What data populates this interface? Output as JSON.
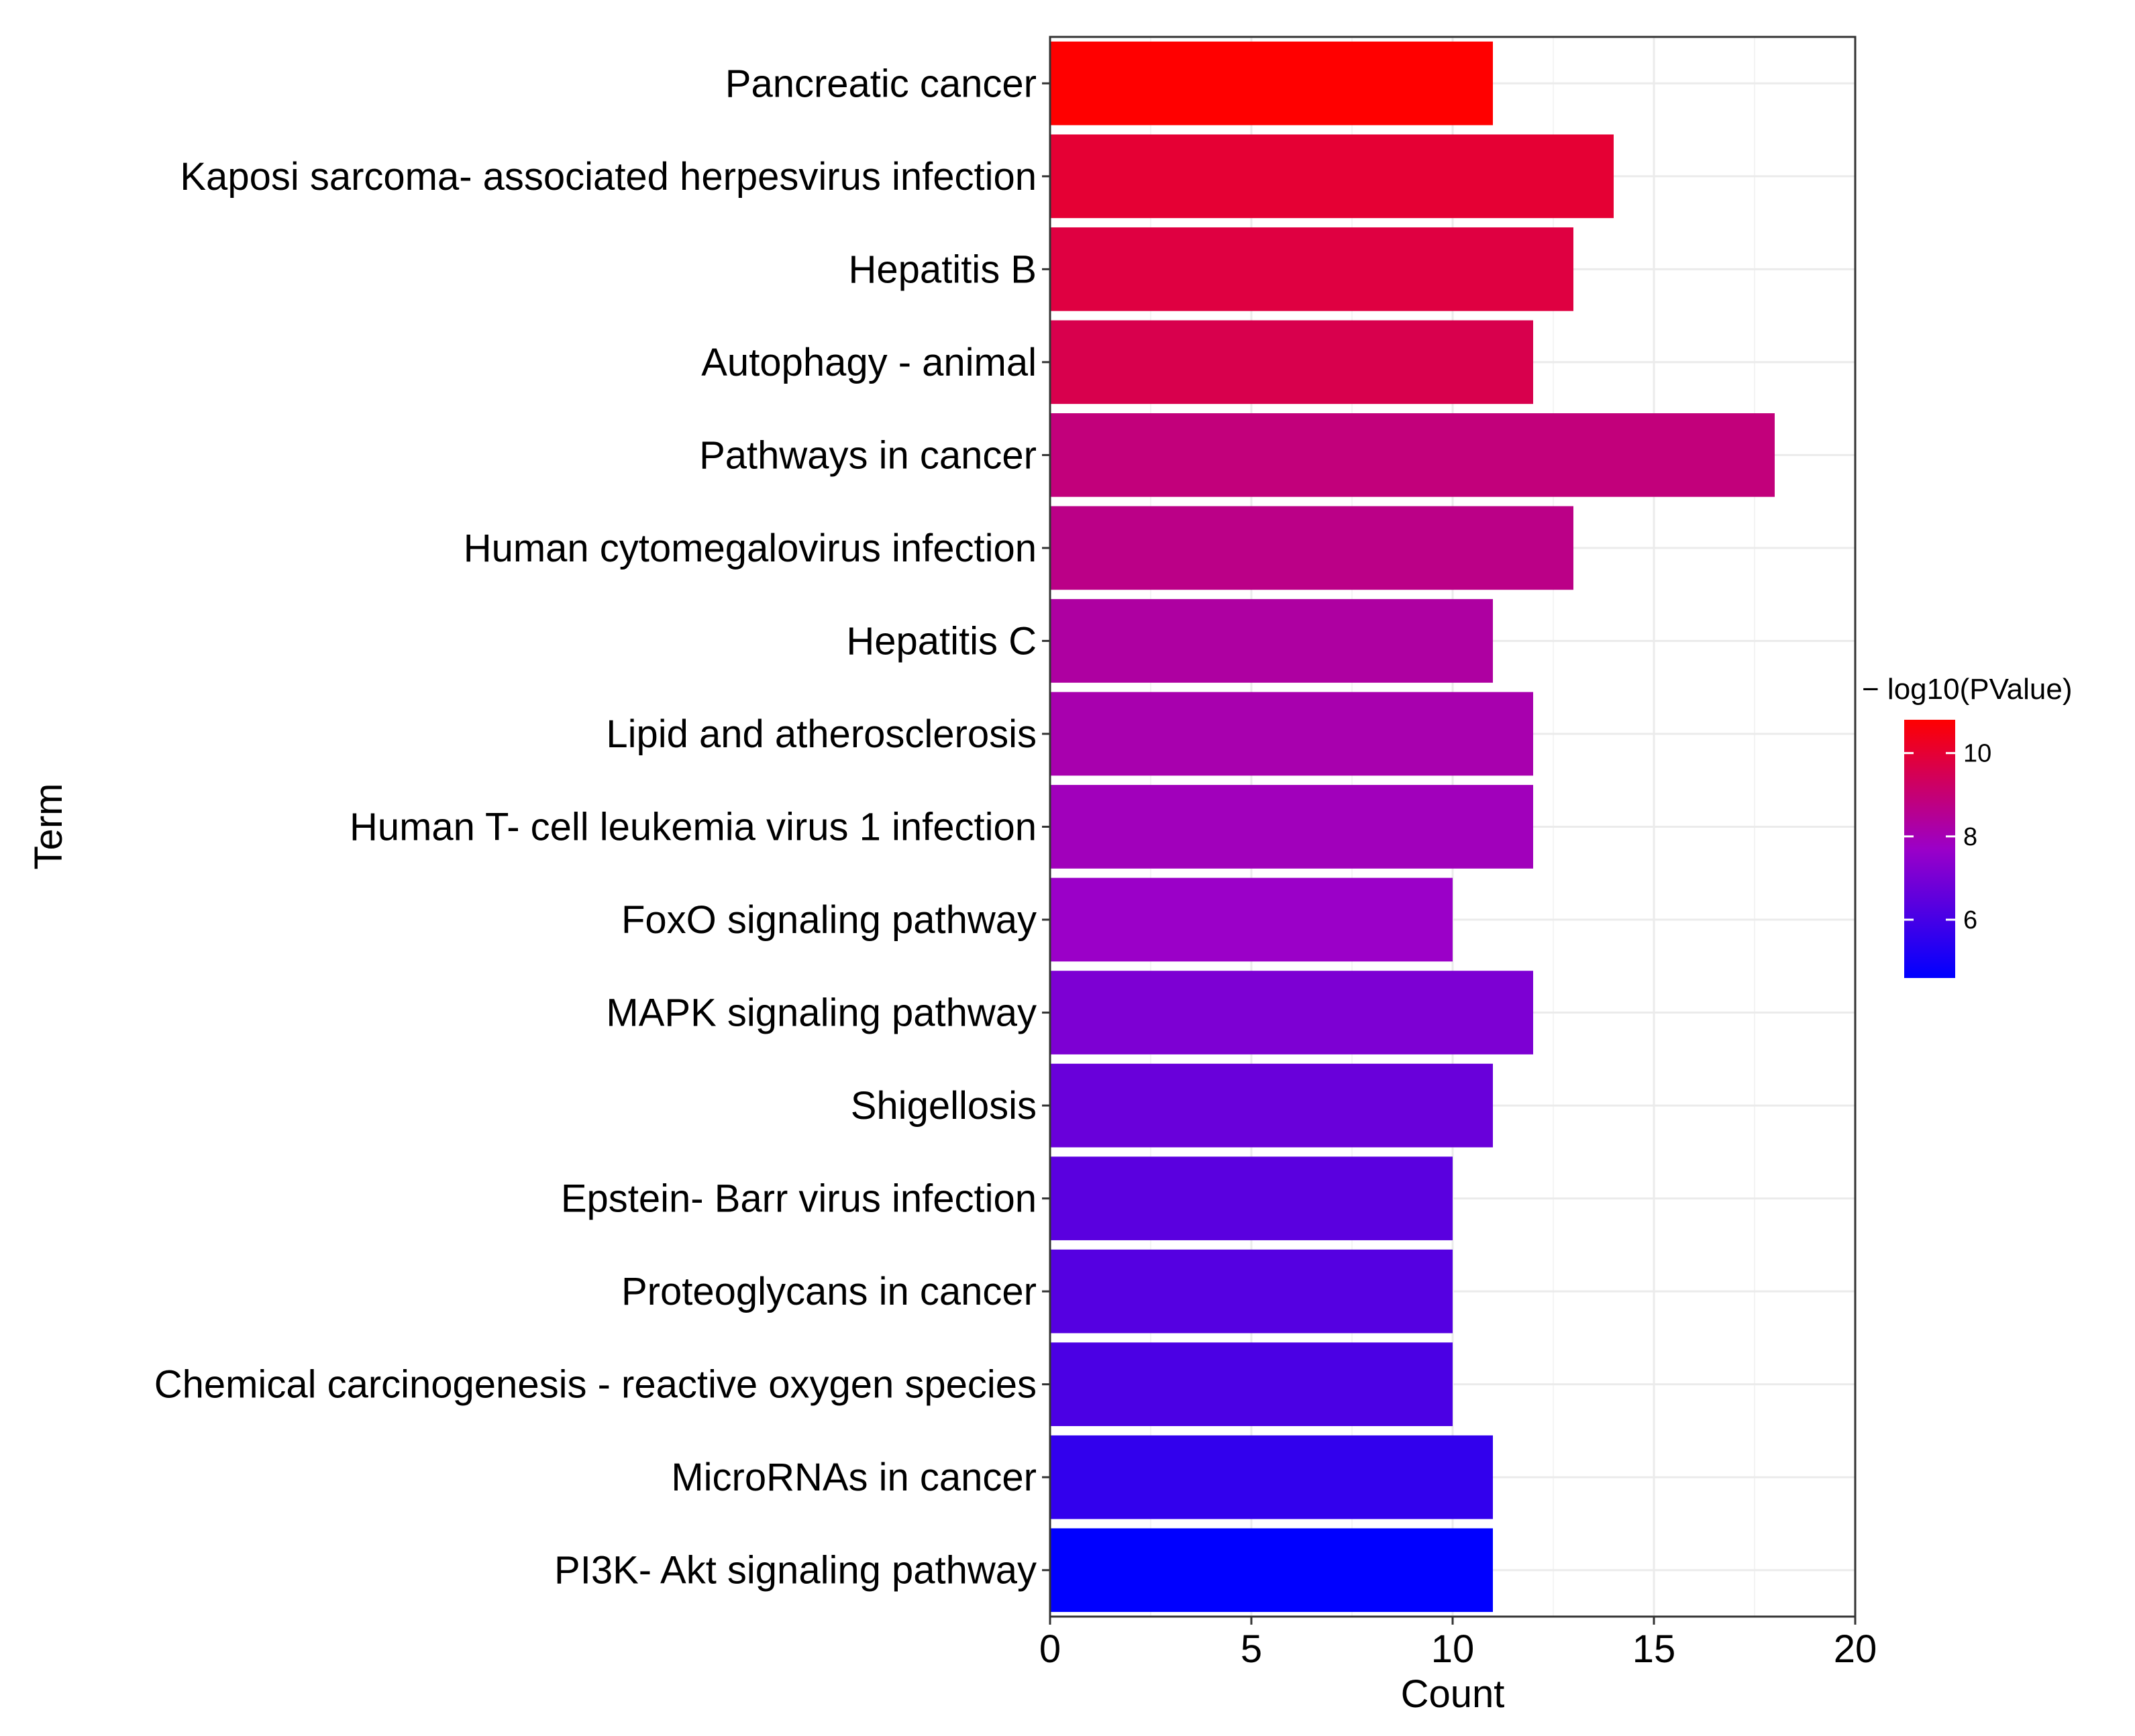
{
  "chart_data": {
    "type": "bar",
    "orientation": "horizontal",
    "title": "",
    "xlabel": "Count",
    "ylabel": "Term",
    "xlim": [
      0,
      20
    ],
    "xticks": [
      "0",
      "5",
      "10",
      "15",
      "20"
    ],
    "grid": true,
    "legend": {
      "title": "− log10(PValue)",
      "position": "right",
      "range": [
        4.6,
        10.8
      ],
      "ticks": [
        "6",
        "8",
        "10"
      ],
      "low_color": "#0000ff",
      "mid_color": "#9b00c8",
      "high_color": "#ff0000"
    },
    "categories": [
      "Pancreatic cancer",
      "Kaposi sarcoma- associated herpesvirus infection",
      "Hepatitis B",
      "Autophagy -  animal",
      "Pathways in cancer",
      "Human cytomegalovirus infection",
      "Hepatitis C",
      "Lipid and atherosclerosis",
      "Human T- cell leukemia virus 1 infection",
      "FoxO signaling pathway",
      "MAPK signaling pathway",
      "Shigellosis",
      "Epstein- Barr virus infection",
      "Proteoglycans in cancer",
      "Chemical carcinogenesis -  reactive oxygen species",
      "MicroRNAs in cancer",
      "PI3K- Akt signaling pathway"
    ],
    "values": [
      11,
      14,
      13,
      12,
      18,
      13,
      11,
      12,
      12,
      10,
      12,
      11,
      10,
      10,
      10,
      11,
      11
    ],
    "neg_log10_pvalue": [
      10.8,
      10.0,
      9.8,
      9.6,
      8.9,
      8.7,
      8.3,
      8.1,
      7.9,
      7.7,
      7.1,
      6.7,
      6.4,
      6.3,
      6.1,
      5.6,
      4.6
    ]
  }
}
